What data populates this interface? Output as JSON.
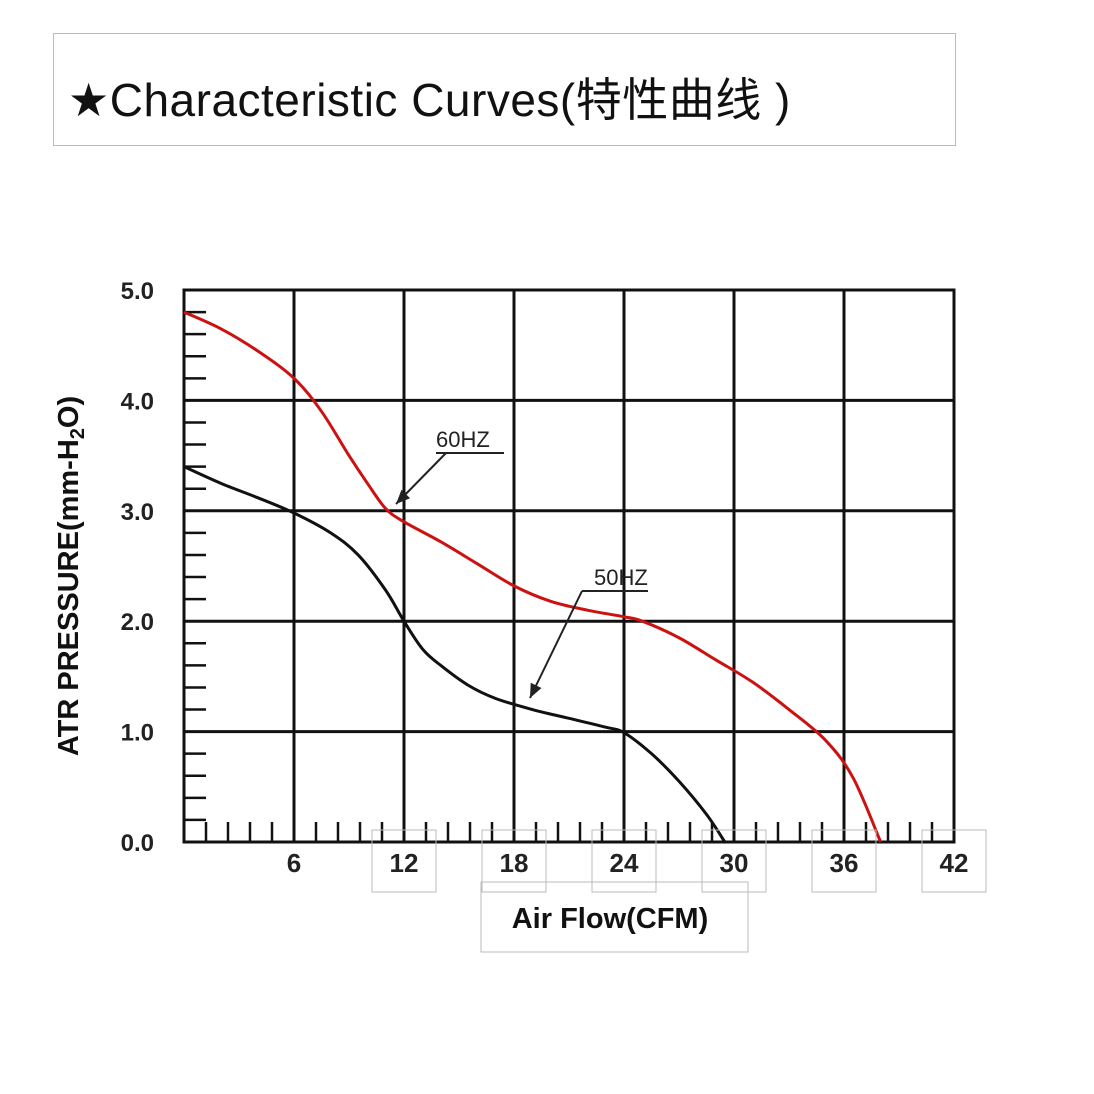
{
  "title": "★Characteristic Curves(特性曲线 )",
  "chart_data": {
    "type": "line",
    "xlabel": "Air Flow(CFM)",
    "ylabel": "ATR PRESSURE(mm-H",
    "ylabel_sub": "2",
    "ylabel_tail": "O)",
    "xlim": [
      0,
      42
    ],
    "ylim": [
      0,
      5
    ],
    "x_ticks": [
      6,
      12,
      18,
      24,
      30,
      36,
      42
    ],
    "x_tick_labels": [
      "6",
      "12",
      "18",
      "24",
      "30",
      "36",
      "42"
    ],
    "y_ticks": [
      0,
      1,
      2,
      3,
      4,
      5
    ],
    "y_tick_labels": [
      "0.0",
      "1.0",
      "2.0",
      "3.0",
      "4.0",
      "5.0"
    ],
    "grid": true,
    "series": [
      {
        "name": "60HZ",
        "color": "#cc1111",
        "x": [
          0,
          2,
          4,
          6,
          7.5,
          9,
          10,
          11,
          12,
          14,
          16,
          18,
          20,
          22,
          24,
          25,
          27,
          29,
          31,
          33,
          35,
          36.5,
          38
        ],
        "y": [
          4.8,
          4.65,
          4.45,
          4.2,
          3.9,
          3.5,
          3.25,
          3.02,
          2.9,
          2.72,
          2.52,
          2.32,
          2.18,
          2.1,
          2.04,
          2.0,
          1.85,
          1.65,
          1.45,
          1.2,
          0.92,
          0.58,
          0.0
        ]
      },
      {
        "name": "50HZ",
        "color": "#111111",
        "x": [
          0,
          2,
          4,
          6,
          8,
          9.5,
          11,
          12,
          13,
          14,
          15.5,
          17,
          19,
          21,
          23,
          24,
          25.5,
          27,
          28.5,
          29.5
        ],
        "y": [
          3.4,
          3.25,
          3.12,
          2.98,
          2.8,
          2.6,
          2.28,
          2.0,
          1.75,
          1.6,
          1.42,
          1.3,
          1.2,
          1.12,
          1.04,
          0.99,
          0.8,
          0.55,
          0.25,
          0.0
        ]
      }
    ],
    "annotations": [
      {
        "text": "60HZ",
        "series": "60HZ"
      },
      {
        "text": "50HZ",
        "series": "50HZ"
      }
    ]
  }
}
